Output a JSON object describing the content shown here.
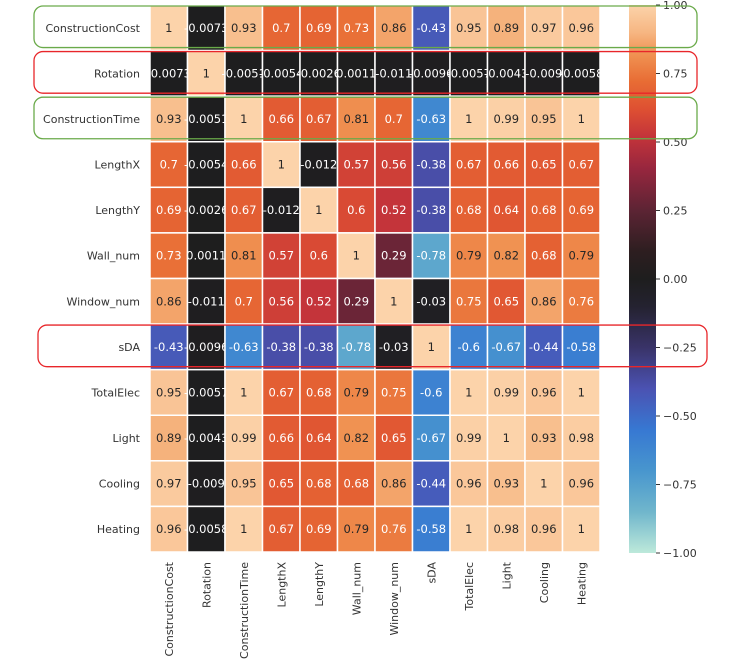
{
  "chart_data": {
    "type": "heatmap",
    "title": "",
    "colormap": "icefire",
    "variables": [
      "ConstructionCost",
      "Rotation",
      "ConstructionTime",
      "LengthX",
      "LengthY",
      "Wall_num",
      "Window_num",
      "sDA",
      "TotalElec",
      "Light",
      "Cooling",
      "Heating"
    ],
    "values": [
      [
        1,
        -0.0073,
        0.93,
        0.7,
        0.69,
        0.73,
        0.86,
        -0.43,
        0.95,
        0.89,
        0.97,
        0.96
      ],
      [
        -0.0073,
        1,
        -0.0051,
        -0.0054,
        -0.0026,
        0.0011,
        -0.011,
        -0.0096,
        -0.0057,
        -0.0043,
        -0.009,
        -0.0058
      ],
      [
        0.93,
        -0.0051,
        1,
        0.66,
        0.67,
        0.81,
        0.7,
        -0.63,
        1,
        0.99,
        0.95,
        1
      ],
      [
        0.7,
        -0.0054,
        0.66,
        1,
        -0.012,
        0.57,
        0.56,
        -0.38,
        0.67,
        0.66,
        0.65,
        0.67
      ],
      [
        0.69,
        -0.0026,
        0.67,
        -0.012,
        1,
        0.6,
        0.52,
        -0.38,
        0.68,
        0.64,
        0.68,
        0.69
      ],
      [
        0.73,
        0.0011,
        0.81,
        0.57,
        0.6,
        1,
        0.29,
        -0.78,
        0.79,
        0.82,
        0.68,
        0.79
      ],
      [
        0.86,
        -0.011,
        0.7,
        0.56,
        0.52,
        0.29,
        1,
        -0.03,
        0.75,
        0.65,
        0.86,
        0.76
      ],
      [
        -0.43,
        -0.0096,
        -0.63,
        -0.38,
        -0.38,
        -0.78,
        -0.03,
        1,
        -0.6,
        -0.67,
        -0.44,
        -0.58
      ],
      [
        0.95,
        -0.0057,
        1,
        0.67,
        0.68,
        0.79,
        0.75,
        -0.6,
        1,
        0.99,
        0.96,
        1
      ],
      [
        0.89,
        -0.0043,
        0.99,
        0.66,
        0.64,
        0.82,
        0.65,
        -0.67,
        0.99,
        1,
        0.93,
        0.98
      ],
      [
        0.97,
        -0.009,
        0.95,
        0.65,
        0.68,
        0.68,
        0.86,
        -0.44,
        0.96,
        0.93,
        1,
        0.96
      ],
      [
        0.96,
        -0.0058,
        1,
        0.67,
        0.69,
        0.79,
        0.76,
        -0.58,
        1,
        0.98,
        0.96,
        1
      ]
    ],
    "colorbar": {
      "range": [
        -1.0,
        1.0
      ],
      "ticks": [
        1.0,
        0.75,
        0.5,
        0.25,
        0.0,
        -0.25,
        -0.5,
        -0.75,
        -1.0
      ],
      "tick_labels": [
        "1.00",
        "0.75",
        "0.50",
        "0.25",
        "0.00",
        "−0.25",
        "−0.50",
        "−0.75",
        "−1.00"
      ],
      "placement": "right"
    },
    "highlights": [
      {
        "row": "ConstructionCost",
        "color": "#6aaa4a"
      },
      {
        "row": "Rotation",
        "color": "#e8262a"
      },
      {
        "row": "ConstructionTime",
        "color": "#6aaa4a"
      },
      {
        "row": "sDA",
        "color": "#e8262a"
      }
    ]
  }
}
